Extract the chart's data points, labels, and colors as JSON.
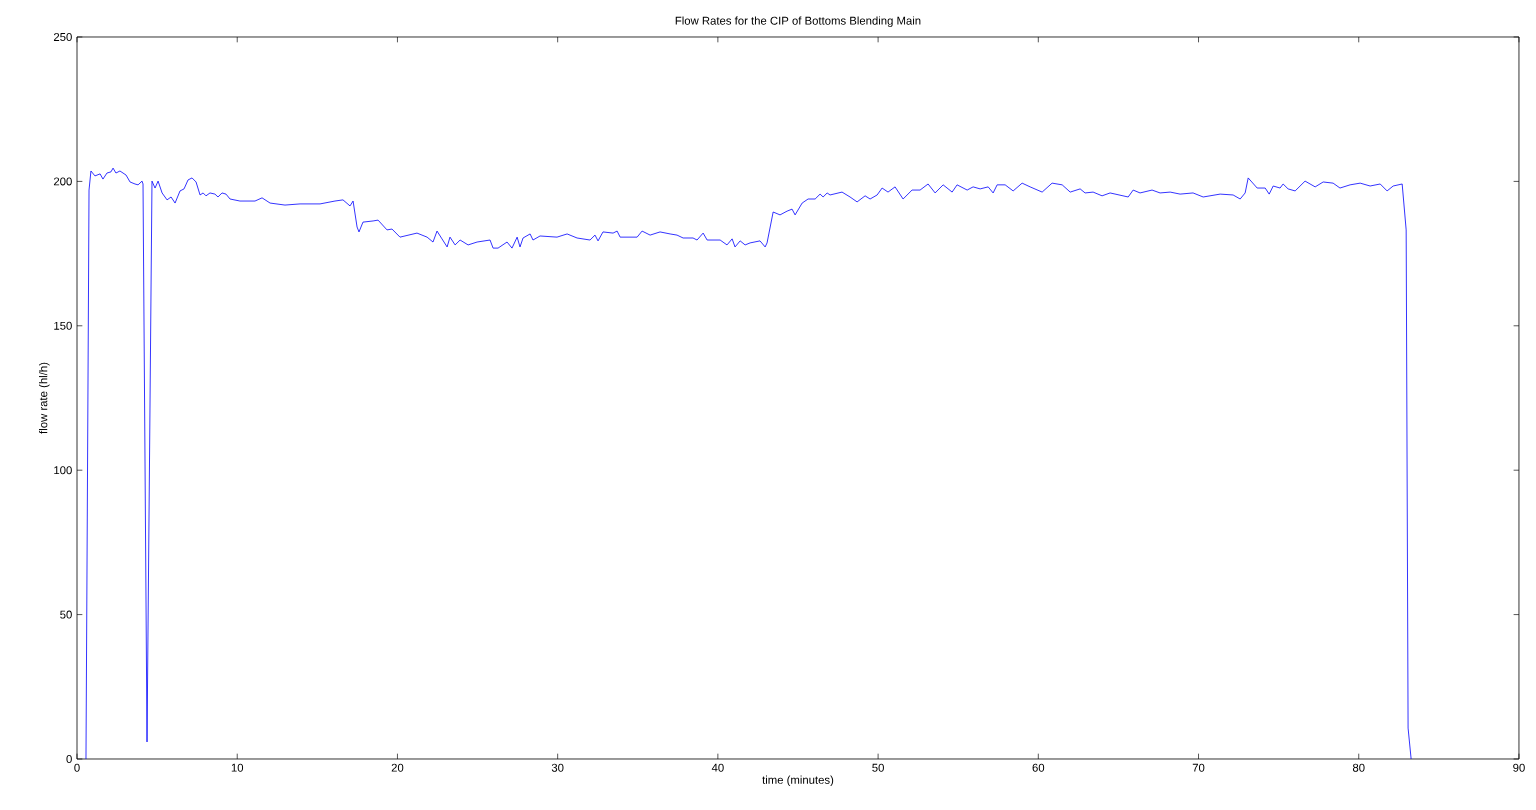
{
  "chart_data": {
    "type": "line",
    "title": "Flow Rates for the CIP of Bottoms Blending Main",
    "xlabel": "time (minutes)",
    "ylabel": "flow rate (hl/h)",
    "x": [
      0.56,
      0.75,
      0.87,
      1.12,
      1.44,
      1.62,
      1.87,
      2.12,
      2.25,
      2.43,
      2.68,
      3.06,
      3.31,
      3.62,
      3.81,
      4.06,
      4.12,
      4.37,
      4.68,
      4.87,
      5.06,
      5.31,
      5.62,
      5.87,
      6.12,
      6.43,
      6.68,
      6.93,
      7.18,
      7.43,
      7.68,
      7.87,
      8.05,
      8.3,
      8.61,
      8.8,
      9.05,
      9.3,
      9.55,
      10.17,
      11.11,
      11.55,
      12.05,
      12.98,
      13.92,
      15.17,
      16.1,
      16.6,
      17.04,
      17.23,
      17.48,
      17.6,
      17.85,
      18.48,
      18.79,
      19.35,
      19.66,
      20.16,
      21.22,
      21.85,
      22.22,
      22.47,
      22.78,
      23.1,
      23.28,
      23.6,
      23.91,
      24.41,
      24.97,
      25.78,
      25.97,
      26.28,
      26.84,
      27.15,
      27.47,
      27.65,
      27.84,
      28.28,
      28.46,
      28.9,
      29.96,
      30.59,
      31.21,
      32.02,
      32.33,
      32.52,
      32.83,
      33.46,
      33.71,
      33.9,
      34.96,
      35.27,
      35.77,
      36.39,
      37.02,
      37.45,
      37.83,
      38.45,
      38.7,
      39.08,
      39.33,
      40.14,
      40.57,
      40.89,
      41.07,
      41.39,
      41.7,
      42.01,
      42.63,
      42.95,
      43.07,
      43.45,
      43.88,
      44.32,
      44.63,
      44.82,
      45.26,
      45.63,
      46.07,
      46.38,
      46.57,
      46.82,
      47.0,
      47.75,
      48.25,
      48.69,
      49.19,
      49.5,
      49.94,
      50.25,
      50.62,
      51.06,
      51.56,
      52.12,
      52.62,
      53.12,
      53.56,
      54.06,
      54.62,
      54.93,
      55.56,
      55.93,
      56.37,
      56.87,
      57.18,
      57.43,
      57.93,
      58.43,
      58.99,
      59.49,
      60.24,
      60.86,
      61.49,
      61.99,
      62.61,
      62.92,
      63.42,
      63.98,
      64.48,
      65.61,
      65.92,
      66.35,
      67.1,
      67.6,
      68.23,
      68.85,
      69.66,
      70.29,
      71.35,
      72.16,
      72.6,
      72.91,
      73.1,
      73.66,
      74.16,
      74.41,
      74.66,
      75.09,
      75.28,
      75.59,
      76.03,
      76.65,
      77.28,
      77.78,
      78.4,
      78.83,
      79.46,
      80.09,
      80.71,
      81.34,
      81.77,
      82.15,
      82.71,
      82.96,
      83.08,
      83.27
    ],
    "values": [
      0,
      197.0,
      203.6,
      201.9,
      202.6,
      200.8,
      202.9,
      203.3,
      204.6,
      202.9,
      203.6,
      202.2,
      199.8,
      199.1,
      198.8,
      200.1,
      199.1,
      5.9,
      200.1,
      197.7,
      200.1,
      196.0,
      193.6,
      194.6,
      192.5,
      196.7,
      197.4,
      200.5,
      201.2,
      199.8,
      195.3,
      196.0,
      195.0,
      196.0,
      195.6,
      194.6,
      196.0,
      195.6,
      193.9,
      193.2,
      193.2,
      194.3,
      192.5,
      191.8,
      192.2,
      192.2,
      193.2,
      193.6,
      191.5,
      193.2,
      184.2,
      182.5,
      185.9,
      186.3,
      186.6,
      183.2,
      183.5,
      180.7,
      182.1,
      180.7,
      179.0,
      182.8,
      180.1,
      177.3,
      180.7,
      178.0,
      179.7,
      178.0,
      179.0,
      179.7,
      176.9,
      176.9,
      179.0,
      176.9,
      180.7,
      177.3,
      180.4,
      181.8,
      179.7,
      181.1,
      180.7,
      181.8,
      180.4,
      179.7,
      181.4,
      179.4,
      182.5,
      182.1,
      182.8,
      180.7,
      180.7,
      182.8,
      181.4,
      182.5,
      181.8,
      181.4,
      180.4,
      180.4,
      179.7,
      182.1,
      179.7,
      179.7,
      178.0,
      180.1,
      177.3,
      179.4,
      178.0,
      178.7,
      179.4,
      177.3,
      178.7,
      189.4,
      188.4,
      189.7,
      190.4,
      188.4,
      192.5,
      193.9,
      193.9,
      195.6,
      194.6,
      196.0,
      195.3,
      196.3,
      194.6,
      192.9,
      195.0,
      193.9,
      195.3,
      197.7,
      196.3,
      198.1,
      193.9,
      197.0,
      197.0,
      199.1,
      196.0,
      198.8,
      196.3,
      198.8,
      197.0,
      198.1,
      197.4,
      198.1,
      196.0,
      198.8,
      198.8,
      196.7,
      199.4,
      198.1,
      196.3,
      199.4,
      198.8,
      196.3,
      197.4,
      196.0,
      196.3,
      195.0,
      196.0,
      194.6,
      197.0,
      196.0,
      197.0,
      196.0,
      196.3,
      195.6,
      196.0,
      194.6,
      195.6,
      195.3,
      193.9,
      196.0,
      201.2,
      197.7,
      197.7,
      195.6,
      198.4,
      197.7,
      199.1,
      197.4,
      196.7,
      200.1,
      198.1,
      199.8,
      199.4,
      197.7,
      198.8,
      199.4,
      198.4,
      199.1,
      196.7,
      198.4,
      199.1,
      183.2,
      10.7,
      0
    ],
    "color": "#0000ff",
    "xlim": [
      0,
      90
    ],
    "ylim": [
      0,
      250
    ],
    "xticks": [
      0,
      10,
      20,
      30,
      40,
      50,
      60,
      70,
      80,
      90
    ],
    "yticks": [
      0,
      50,
      100,
      150,
      200,
      250
    ]
  }
}
